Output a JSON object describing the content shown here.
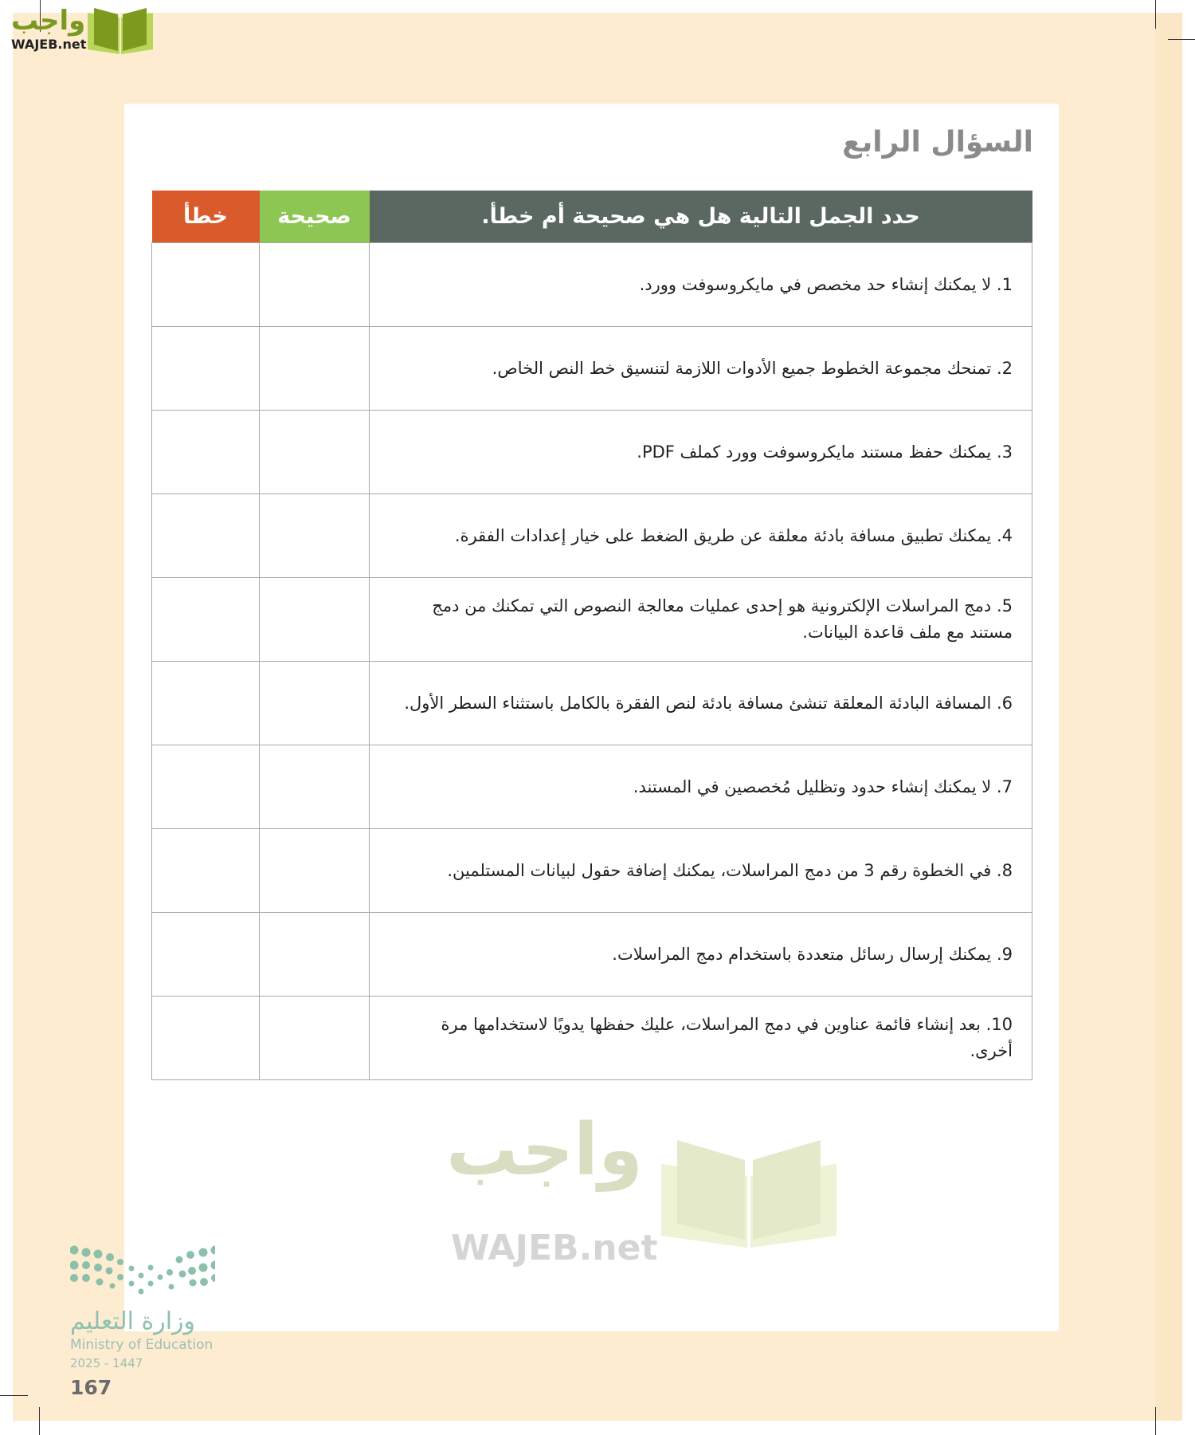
{
  "logo": {
    "arabic": "واجب",
    "latin": "WAJEB.net"
  },
  "title": "السؤال الرابع",
  "table": {
    "headers": {
      "statement": "حدد الجمل التالية هل هي صحيحة أم خطأ.",
      "true": "صحيحة",
      "false": "خطأ"
    },
    "colors": {
      "statement": "#5a6861",
      "true": "#8dc653",
      "false": "#d95a2a"
    },
    "rows": [
      "1. لا يمكنك إنشاء حد مخصص في مايكروسوفت وورد.",
      "2. تمنحك مجموعة الخطوط جميع الأدوات اللازمة لتنسيق خط النص الخاص.",
      "3. يمكنك حفظ مستند مايكروسوفت وورد كملف PDF.",
      "4. يمكنك تطبيق مسافة بادئة معلقة عن طريق الضغط على خيار إعدادات الفقرة.",
      "5. دمج المراسلات الإلكترونية هو إحدى عمليات معالجة النصوص التي تمكنك من دمج مستند مع ملف قاعدة البيانات.",
      "6. المسافة البادئة المعلقة تنشئ مسافة بادئة لنص الفقرة بالكامل باستثناء السطر الأول.",
      "7. لا يمكنك إنشاء حدود وتظليل مُخصصين في المستند.",
      "8. في الخطوة رقم 3 من دمج المراسلات، يمكنك إضافة حقول لبيانات المستلمين.",
      "9. يمكنك إرسال رسائل متعددة باستخدام دمج المراسلات.",
      "10. بعد إنشاء قائمة عناوين في دمج المراسلات، عليك حفظها يدويًا لاستخدامها مرة أخرى."
    ]
  },
  "watermark": {
    "arabic": "واجب",
    "latin": "WAJEB.net"
  },
  "ministry": {
    "arabic": "وزارة التعليم",
    "english": "Ministry of Education",
    "year": "2025 - 1447"
  },
  "page_number": "167"
}
